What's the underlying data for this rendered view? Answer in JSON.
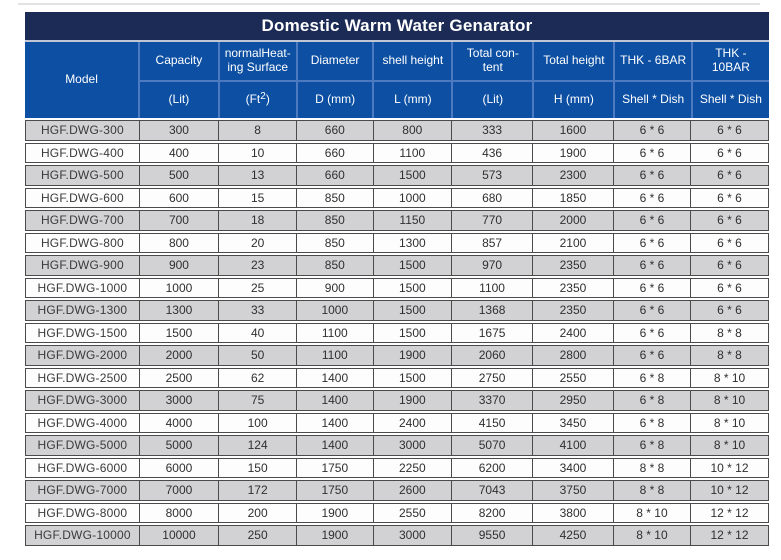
{
  "title": "Domestic Warm Water Genarator",
  "header": {
    "model_label": "Model",
    "columns": [
      {
        "label": "Capacity",
        "unit": "(Lit)"
      },
      {
        "label": "normalHeat-\ning Surface",
        "unit_base": "(Ft",
        "unit_sup": "2",
        "unit_close": ")"
      },
      {
        "label": "Diameter",
        "unit": "D (mm)"
      },
      {
        "label": "shell height",
        "unit": "L (mm)"
      },
      {
        "label": "Total con-\ntent",
        "unit": "(Lit)"
      },
      {
        "label": "Total height",
        "unit": "H (mm)"
      },
      {
        "label": "THK - 6BAR",
        "unit": "Shell * Dish"
      },
      {
        "label": "THK - 10BAR",
        "unit": "Shell * Dish"
      }
    ]
  },
  "table": {
    "rows": [
      [
        "HGF.DWG-300",
        "300",
        "8",
        "660",
        "800",
        "333",
        "1600",
        "6 * 6",
        "6 * 6"
      ],
      [
        "HGF.DWG-400",
        "400",
        "10",
        "660",
        "1100",
        "436",
        "1900",
        "6 * 6",
        "6 * 6"
      ],
      [
        "HGF.DWG-500",
        "500",
        "13",
        "660",
        "1500",
        "573",
        "2300",
        "6 * 6",
        "6 * 6"
      ],
      [
        "HGF.DWG-600",
        "600",
        "15",
        "850",
        "1000",
        "680",
        "1850",
        "6 * 6",
        "6 * 6"
      ],
      [
        "HGF.DWG-700",
        "700",
        "18",
        "850",
        "1150",
        "770",
        "2000",
        "6 * 6",
        "6 * 6"
      ],
      [
        "HGF.DWG-800",
        "800",
        "20",
        "850",
        "1300",
        "857",
        "2100",
        "6 * 6",
        "6 * 6"
      ],
      [
        "HGF.DWG-900",
        "900",
        "23",
        "850",
        "1500",
        "970",
        "2350",
        "6 * 6",
        "6 * 6"
      ],
      [
        "HGF.DWG-1000",
        "1000",
        "25",
        "900",
        "1500",
        "1100",
        "2350",
        "6 * 6",
        "6 * 6"
      ],
      [
        "HGF.DWG-1300",
        "1300",
        "33",
        "1000",
        "1500",
        "1368",
        "2350",
        "6 * 6",
        "6 * 6"
      ],
      [
        "HGF.DWG-1500",
        "1500",
        "40",
        "1100",
        "1500",
        "1675",
        "2400",
        "6 * 6",
        "8 * 8"
      ],
      [
        "HGF.DWG-2000",
        "2000",
        "50",
        "1100",
        "1900",
        "2060",
        "2800",
        "6 * 6",
        "8 * 8"
      ],
      [
        "HGF.DWG-2500",
        "2500",
        "62",
        "1400",
        "1500",
        "2750",
        "2550",
        "6 * 8",
        "8 * 10"
      ],
      [
        "HGF.DWG-3000",
        "3000",
        "75",
        "1400",
        "1900",
        "3370",
        "2950",
        "6 * 8",
        "8 * 10"
      ],
      [
        "HGF.DWG-4000",
        "4000",
        "100",
        "1400",
        "2400",
        "4150",
        "3450",
        "6 * 8",
        "8 * 10"
      ],
      [
        "HGF.DWG-5000",
        "5000",
        "124",
        "1400",
        "3000",
        "5070",
        "4100",
        "6 * 8",
        "8 * 10"
      ],
      [
        "HGF.DWG-6000",
        "6000",
        "150",
        "1750",
        "2250",
        "6200",
        "3400",
        "8 * 8",
        "10 * 12"
      ],
      [
        "HGF.DWG-7000",
        "7000",
        "172",
        "1750",
        "2600",
        "7043",
        "3750",
        "8 * 8",
        "10 * 12"
      ],
      [
        "HGF.DWG-8000",
        "8000",
        "200",
        "1900",
        "2550",
        "8200",
        "3800",
        "8 * 10",
        "12 * 12"
      ],
      [
        "HGF.DWG-10000",
        "10000",
        "250",
        "1900",
        "3000",
        "9550",
        "4250",
        "8 * 10",
        "12 * 12"
      ]
    ]
  },
  "colors": {
    "title_band": "#1c2b55",
    "header_blue": "#0c4fa3",
    "header_separator": "#4d7ac1",
    "row_gray": "#d2d2d4",
    "row_white": "#fdfdfd",
    "row_border": "#4b4b4b"
  }
}
